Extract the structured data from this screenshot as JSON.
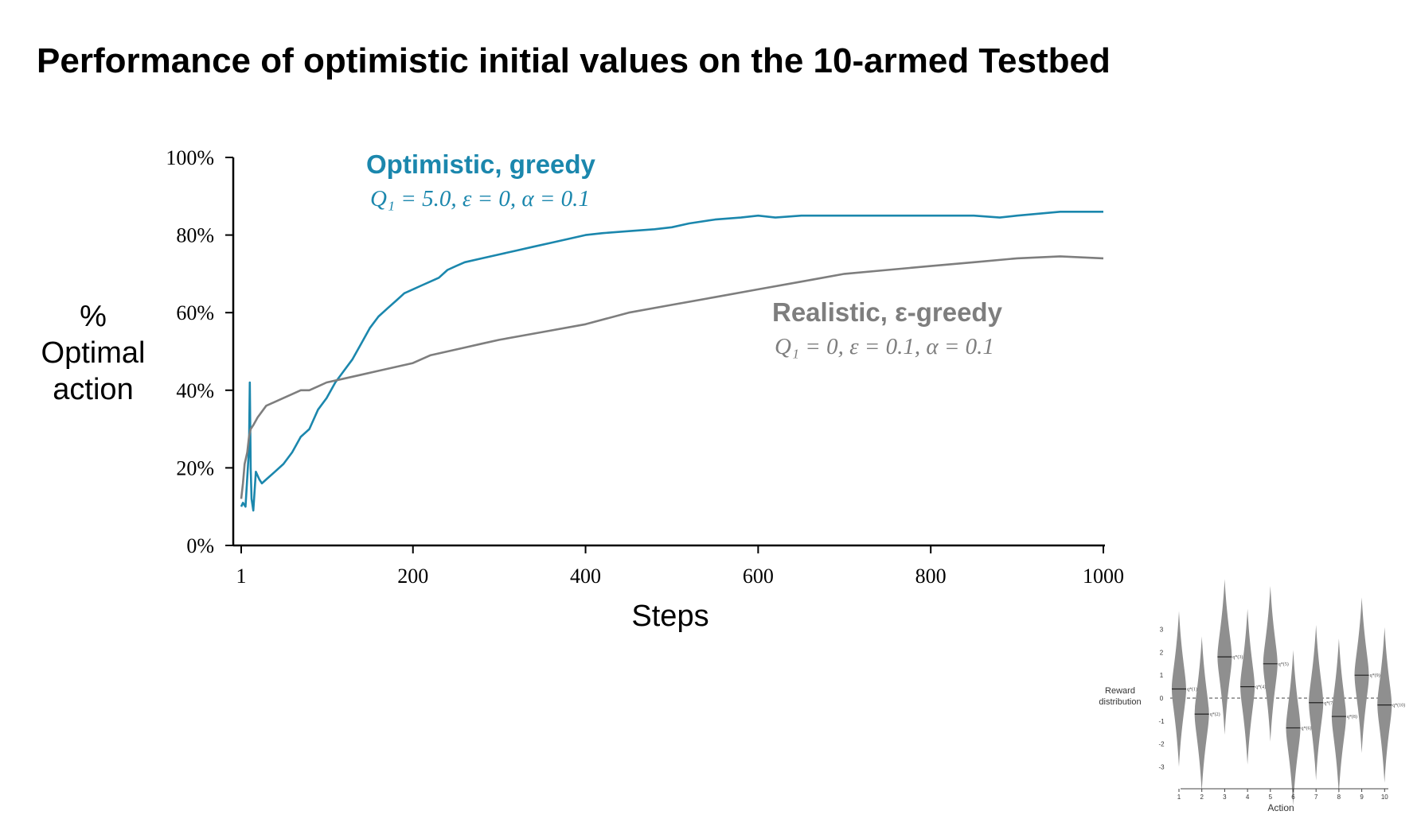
{
  "slide": {
    "title": "Performance of optimistic initial values on the 10-armed Testbed"
  },
  "chart_data": [
    {
      "type": "line",
      "xlabel": "Steps",
      "ylabel_lines": [
        "%",
        "Optimal",
        "action"
      ],
      "xlim": [
        1,
        1000
      ],
      "ylim": [
        0,
        100
      ],
      "x_ticks": [
        1,
        200,
        400,
        600,
        800,
        1000
      ],
      "x_tick_labels": [
        "1",
        "200",
        "400",
        "600",
        "800",
        "1000"
      ],
      "y_ticks": [
        0,
        20,
        40,
        60,
        80,
        100
      ],
      "y_tick_labels": [
        "0%",
        "20%",
        "40%",
        "60%",
        "80%",
        "100%"
      ],
      "grid": false,
      "legend": "inline",
      "series": [
        {
          "name": "Optimistic, greedy",
          "params": "Q₁ = 5.0, ε = 0, α = 0.1",
          "color": "#1b87ad",
          "x": [
            1,
            3,
            6,
            10,
            11,
            12,
            13,
            15,
            18,
            22,
            25,
            30,
            40,
            50,
            60,
            70,
            80,
            90,
            100,
            110,
            120,
            130,
            140,
            150,
            160,
            170,
            180,
            190,
            200,
            210,
            220,
            230,
            240,
            250,
            260,
            280,
            300,
            320,
            340,
            360,
            380,
            400,
            420,
            450,
            480,
            500,
            520,
            550,
            580,
            600,
            620,
            650,
            700,
            750,
            800,
            850,
            880,
            900,
            950,
            1000
          ],
          "y": [
            10,
            11,
            10,
            25,
            42,
            20,
            12,
            9,
            19,
            17,
            16,
            17,
            19,
            21,
            24,
            28,
            30,
            35,
            38,
            42,
            45,
            48,
            52,
            56,
            59,
            61,
            63,
            65,
            66,
            67,
            68,
            69,
            71,
            72,
            73,
            74,
            75,
            76,
            77,
            78,
            79,
            80,
            80.5,
            81,
            81.5,
            82,
            83,
            84,
            84.5,
            85,
            84.5,
            85,
            85,
            85,
            85,
            85,
            84.5,
            85,
            86,
            86
          ]
        },
        {
          "name": "Realistic, ε-greedy",
          "params": "Q₁ = 0, ε = 0.1, α = 0.1",
          "color": "#7e7e7e",
          "x": [
            1,
            3,
            5,
            8,
            10,
            12,
            15,
            20,
            30,
            40,
            50,
            60,
            70,
            80,
            90,
            100,
            120,
            140,
            160,
            180,
            200,
            220,
            240,
            260,
            280,
            300,
            350,
            400,
            450,
            500,
            550,
            600,
            650,
            700,
            750,
            800,
            850,
            900,
            950,
            1000
          ],
          "y": [
            12,
            16,
            21,
            24,
            28,
            30,
            31,
            33,
            36,
            37,
            38,
            39,
            40,
            40,
            41,
            42,
            43,
            44,
            45,
            46,
            47,
            49,
            50,
            51,
            52,
            53,
            55,
            57,
            60,
            62,
            64,
            66,
            68,
            70,
            71,
            72,
            73,
            74,
            74.5,
            74
          ]
        }
      ]
    },
    {
      "type": "violin",
      "xlabel": "Action",
      "ylabel_lines": [
        "Reward",
        "distribution"
      ],
      "categories": [
        "1",
        "2",
        "3",
        "4",
        "5",
        "6",
        "7",
        "8",
        "9",
        "10"
      ],
      "y_ticks": [
        3,
        2,
        1,
        0,
        -1,
        -2,
        -3
      ],
      "means": [
        0.4,
        -0.7,
        1.8,
        0.5,
        1.5,
        -1.3,
        -0.2,
        -0.8,
        1.0,
        -0.3
      ],
      "mean_labels": [
        "q*(1)",
        "q*(2)",
        "q*(3)",
        "q*(4)",
        "q*(5)",
        "q*(6)",
        "q*(7)",
        "q*(8)",
        "q*(9)",
        "q*(10)"
      ]
    }
  ]
}
